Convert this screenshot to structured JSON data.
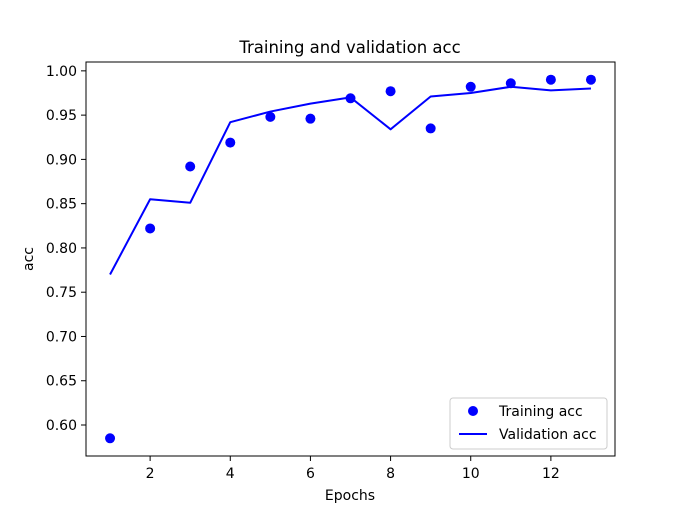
{
  "chart_data": {
    "type": "line",
    "title": "Training and validation acc",
    "xlabel": "Epochs",
    "ylabel": "acc",
    "xlim": [
      0.4,
      13.6
    ],
    "ylim": [
      0.565,
      1.01
    ],
    "xticks": [
      2,
      4,
      6,
      8,
      10,
      12
    ],
    "yticks": [
      0.6,
      0.65,
      0.7,
      0.75,
      0.8,
      0.85,
      0.9,
      0.95,
      1.0
    ],
    "xtick_labels": [
      "2",
      "4",
      "6",
      "8",
      "10",
      "12"
    ],
    "ytick_labels": [
      "0.60",
      "0.65",
      "0.70",
      "0.75",
      "0.80",
      "0.85",
      "0.90",
      "0.95",
      "1.00"
    ],
    "grid": false,
    "legend_position": "lower-right",
    "x": [
      1,
      2,
      3,
      4,
      5,
      6,
      7,
      8,
      9,
      10,
      11,
      12,
      13
    ],
    "series": [
      {
        "name": "Training acc",
        "style": "points",
        "color": "#0000ff",
        "values": [
          0.585,
          0.822,
          0.892,
          0.919,
          0.948,
          0.946,
          0.969,
          0.977,
          0.935,
          0.982,
          0.986,
          0.99,
          0.99
        ]
      },
      {
        "name": "Validation acc",
        "style": "line",
        "color": "#0000ff",
        "values": [
          0.77,
          0.855,
          0.851,
          0.942,
          0.954,
          0.963,
          0.97,
          0.934,
          0.971,
          0.975,
          0.982,
          0.978,
          0.98
        ]
      }
    ]
  }
}
